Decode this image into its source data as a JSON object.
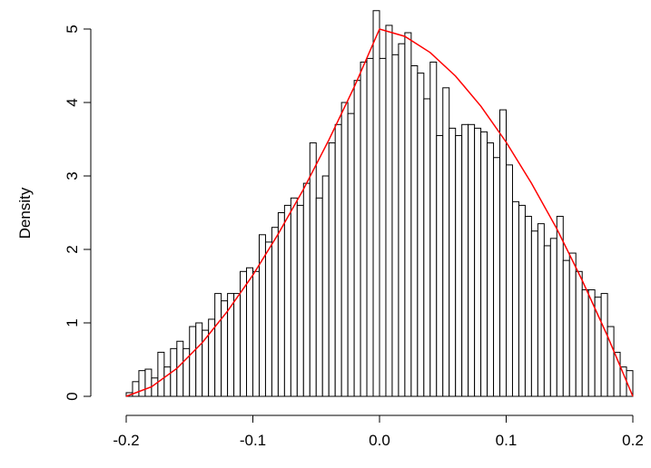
{
  "chart_data": [
    {
      "type": "histogram",
      "ylabel": "Density",
      "color": "#ffffff",
      "edgecolor": "#000000",
      "bins": [
        -0.2,
        -0.195,
        -0.19,
        -0.185,
        -0.18,
        -0.175,
        -0.17,
        -0.165,
        -0.16,
        -0.155,
        -0.15,
        -0.145,
        -0.14,
        -0.135,
        -0.13,
        -0.125,
        -0.12,
        -0.115,
        -0.11,
        -0.105,
        -0.1,
        -0.095,
        -0.09,
        -0.085,
        -0.08,
        -0.075,
        -0.07,
        -0.065,
        -0.06,
        -0.055,
        -0.05,
        -0.045,
        -0.04,
        -0.035,
        -0.03,
        -0.025,
        -0.02,
        -0.015,
        -0.01,
        -0.005,
        0,
        0.005,
        0.01,
        0.015,
        0.02,
        0.025,
        0.03,
        0.035,
        0.04,
        0.045,
        0.05,
        0.055,
        0.06,
        0.065,
        0.07,
        0.075,
        0.08,
        0.085,
        0.09,
        0.095,
        0.1,
        0.105,
        0.11,
        0.115,
        0.12,
        0.125,
        0.13,
        0.135,
        0.14,
        0.145,
        0.15,
        0.155,
        0.16,
        0.165,
        0.17,
        0.175,
        0.18,
        0.185,
        0.19,
        0.195,
        0.2
      ],
      "values": [
        0.05,
        0.2,
        0.35,
        0.37,
        0.25,
        0.6,
        0.4,
        0.65,
        0.75,
        0.65,
        0.95,
        1.0,
        0.9,
        1.05,
        1.4,
        1.3,
        1.4,
        1.4,
        1.7,
        1.75,
        1.7,
        2.2,
        2.1,
        2.3,
        2.5,
        2.6,
        2.7,
        2.6,
        2.9,
        3.45,
        2.7,
        3.0,
        3.45,
        3.7,
        4.0,
        3.85,
        4.3,
        4.55,
        4.6,
        5.25,
        4.6,
        5.05,
        4.65,
        4.8,
        4.95,
        4.5,
        4.4,
        4.05,
        4.55,
        3.55,
        4.2,
        3.65,
        3.55,
        3.7,
        3.7,
        3.65,
        3.6,
        3.45,
        3.25,
        3.9,
        3.15,
        2.65,
        2.6,
        2.45,
        2.25,
        2.35,
        2.05,
        2.15,
        2.45,
        1.85,
        1.95,
        1.7,
        1.45,
        1.45,
        1.35,
        1.4,
        0.95,
        0.6,
        0.4,
        0.35
      ],
      "xlim": [
        -0.2,
        0.2
      ],
      "ylim": [
        0,
        5
      ],
      "xticks": [
        -0.2,
        -0.1,
        {
          "value": 0,
          "label": "0.0"
        },
        0.1,
        0.2
      ],
      "yticks": [
        0,
        1,
        2,
        3,
        4,
        5
      ]
    },
    {
      "type": "line",
      "color": "#ff0000",
      "x": [
        -0.2,
        -0.18,
        -0.16,
        -0.14,
        -0.12,
        -0.1,
        -0.08,
        -0.06,
        -0.04,
        -0.02,
        0,
        0.02,
        0.04,
        0.06,
        0.08,
        0.1,
        0.12,
        0.14,
        0.16,
        0.18,
        0.2
      ],
      "values": [
        0,
        0.13,
        0.38,
        0.73,
        1.16,
        1.65,
        2.21,
        2.82,
        3.49,
        4.21,
        5,
        4.9,
        4.68,
        4.36,
        3.95,
        3.46,
        2.9,
        2.28,
        1.58,
        0.82,
        0
      ]
    }
  ]
}
